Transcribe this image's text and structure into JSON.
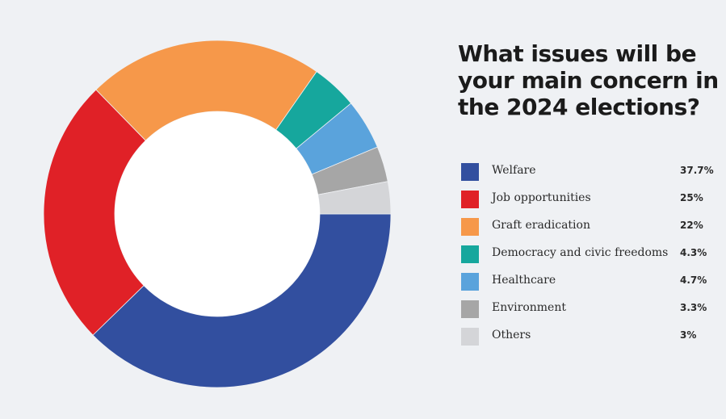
{
  "chart_data": {
    "type": "pie",
    "title": "What issues will be your main concern in the 2024 elections?",
    "donut": true,
    "legend_position": "right",
    "slices": [
      {
        "label": "Welfare",
        "value": 37.7,
        "value_label": "37.7%",
        "color": "#324f9f"
      },
      {
        "label": "Job opportunities",
        "value": 25,
        "value_label": "25%",
        "color": "#e02127"
      },
      {
        "label": "Graft eradication",
        "value": 22,
        "value_label": "22%",
        "color": "#f6984a"
      },
      {
        "label": "Democracy and civic freedoms",
        "value": 4.3,
        "value_label": "4.3%",
        "color": "#16a79d"
      },
      {
        "label": "Healthcare",
        "value": 4.7,
        "value_label": "4.7%",
        "color": "#5aa3dc"
      },
      {
        "label": "Environment",
        "value": 3.3,
        "value_label": "3.3%",
        "color": "#a6a6a6"
      },
      {
        "label": "Others",
        "value": 3,
        "value_label": "3%",
        "color": "#d4d5d8"
      }
    ]
  }
}
